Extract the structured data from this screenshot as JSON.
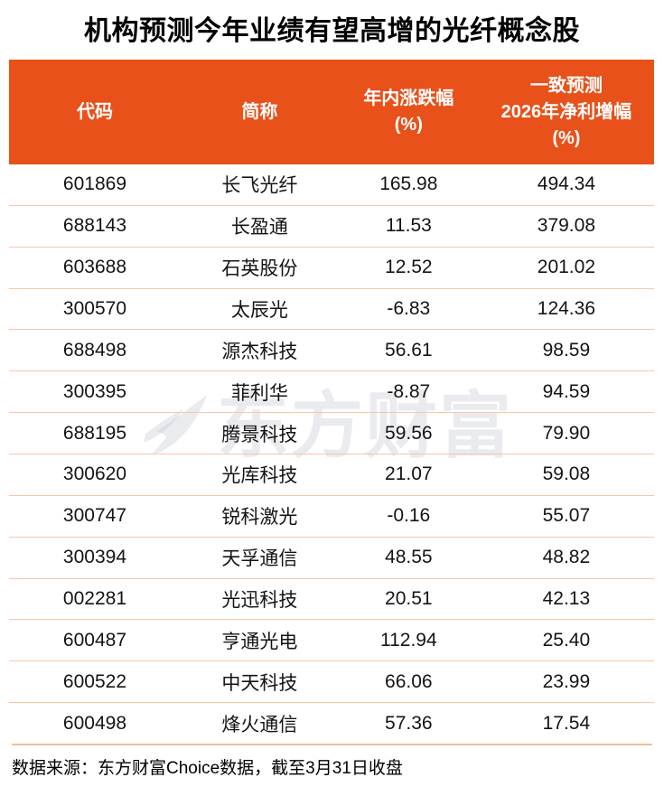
{
  "title": "机构预测今年业绩有望高增的光纤概念股",
  "header": {
    "column_lines": [
      [
        "代码"
      ],
      [
        "简称"
      ],
      [
        "年内涨跌幅",
        "(%)"
      ],
      [
        "一致预测",
        "2026年净利增幅",
        "(%)"
      ]
    ]
  },
  "watermark": {
    "text": "东方财富",
    "logo": "eastmoney-swoosh"
  },
  "footer": {
    "source_text": "数据来源：东方财富Choice数据，截至3月31日收盘"
  },
  "colors": {
    "header_bg": "#E8511A",
    "row_divider": "#F8C7A5",
    "footer_line": "#F1BD96",
    "header_text": "#ffffff",
    "body_text": "#141414",
    "watermark": "#E8EAEF"
  },
  "chart_data": {
    "type": "table",
    "title": "机构预测今年业绩有望高增的光纤概念股",
    "columns": [
      "代码",
      "简称",
      "年内涨跌幅(%)",
      "一致预测2026年净利增幅(%)"
    ],
    "rows": [
      [
        "601869",
        "长飞光纤",
        "165.98",
        "494.34"
      ],
      [
        "688143",
        "长盈通",
        "11.53",
        "379.08"
      ],
      [
        "603688",
        "石英股份",
        "12.52",
        "201.02"
      ],
      [
        "300570",
        "太辰光",
        "-6.83",
        "124.36"
      ],
      [
        "688498",
        "源杰科技",
        "56.61",
        "98.59"
      ],
      [
        "300395",
        "菲利华",
        "-8.87",
        "94.59"
      ],
      [
        "688195",
        "腾景科技",
        "59.56",
        "79.90"
      ],
      [
        "300620",
        "光库科技",
        "21.07",
        "59.08"
      ],
      [
        "300747",
        "锐科激光",
        "-0.16",
        "55.07"
      ],
      [
        "300394",
        "天孚通信",
        "48.55",
        "48.82"
      ],
      [
        "002281",
        "光迅科技",
        "20.51",
        "42.13"
      ],
      [
        "600487",
        "亨通光电",
        "112.94",
        "25.40"
      ],
      [
        "600522",
        "中天科技",
        "66.06",
        "23.99"
      ],
      [
        "600498",
        "烽火通信",
        "57.36",
        "17.54"
      ]
    ],
    "source_note": "数据来源：东方财富Choice数据，截至3月31日收盘",
    "legend_position": "none",
    "grid": "horizontal-dividers"
  }
}
